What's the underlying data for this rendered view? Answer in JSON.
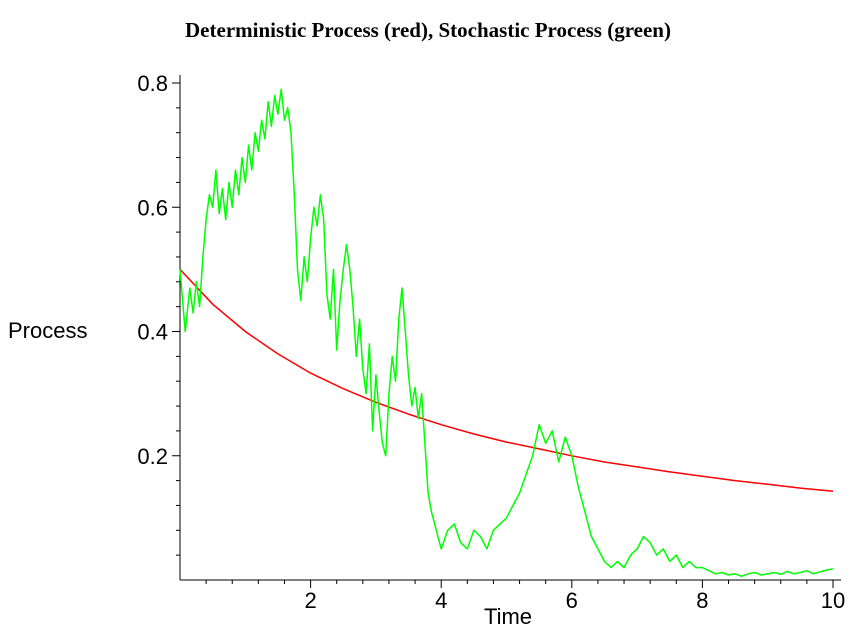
{
  "chart_data": {
    "type": "line",
    "title": "Deterministic Process (red), Stochastic Process (green)",
    "xlabel": "Time",
    "ylabel": "Process",
    "xlim": [
      0,
      10
    ],
    "ylim": [
      0,
      0.8
    ],
    "x_ticks": [
      2,
      4,
      6,
      8,
      10
    ],
    "x_tick_labels": [
      "2",
      "4",
      "6",
      "8",
      "10"
    ],
    "y_ticks": [
      0.2,
      0.4,
      0.6,
      0.8
    ],
    "y_tick_labels": [
      "0.2",
      "0.4",
      "0.6",
      "0.8"
    ],
    "grid": false,
    "series": [
      {
        "color": "#ff0000",
        "x": [
          0,
          0.5,
          1,
          1.5,
          2,
          2.5,
          3,
          3.5,
          4,
          4.5,
          5,
          5.5,
          6,
          6.5,
          7,
          7.5,
          8,
          8.5,
          9,
          9.5,
          10
        ],
        "y": [
          0.5,
          0.444,
          0.4,
          0.364,
          0.333,
          0.308,
          0.286,
          0.267,
          0.25,
          0.235,
          0.222,
          0.211,
          0.2,
          0.19,
          0.182,
          0.174,
          0.167,
          0.16,
          0.154,
          0.148,
          0.143
        ]
      },
      {
        "color": "#00ff00",
        "x": [
          0,
          0.08,
          0.15,
          0.2,
          0.25,
          0.3,
          0.35,
          0.4,
          0.45,
          0.5,
          0.55,
          0.6,
          0.65,
          0.7,
          0.75,
          0.8,
          0.85,
          0.9,
          0.95,
          1.0,
          1.05,
          1.1,
          1.15,
          1.2,
          1.25,
          1.3,
          1.35,
          1.4,
          1.45,
          1.5,
          1.55,
          1.6,
          1.65,
          1.7,
          1.75,
          1.8,
          1.85,
          1.9,
          1.95,
          2.0,
          2.05,
          2.1,
          2.15,
          2.2,
          2.25,
          2.3,
          2.35,
          2.4,
          2.45,
          2.5,
          2.55,
          2.6,
          2.65,
          2.7,
          2.75,
          2.8,
          2.85,
          2.9,
          2.95,
          3.0,
          3.05,
          3.1,
          3.15,
          3.2,
          3.25,
          3.3,
          3.35,
          3.4,
          3.45,
          3.5,
          3.55,
          3.6,
          3.65,
          3.7,
          3.75,
          3.8,
          3.85,
          3.9,
          3.95,
          4.0,
          4.1,
          4.2,
          4.3,
          4.4,
          4.5,
          4.6,
          4.7,
          4.8,
          4.9,
          5.0,
          5.1,
          5.2,
          5.3,
          5.4,
          5.5,
          5.6,
          5.7,
          5.8,
          5.9,
          6.0,
          6.1,
          6.2,
          6.3,
          6.4,
          6.5,
          6.6,
          6.7,
          6.8,
          6.9,
          7.0,
          7.1,
          7.2,
          7.3,
          7.4,
          7.5,
          7.6,
          7.7,
          7.8,
          7.9,
          8.0,
          8.1,
          8.2,
          8.3,
          8.4,
          8.5,
          8.6,
          8.7,
          8.8,
          8.9,
          9.0,
          9.1,
          9.2,
          9.3,
          9.4,
          9.5,
          9.6,
          9.7,
          9.8,
          9.9,
          10.0
        ],
        "y": [
          0.5,
          0.4,
          0.47,
          0.43,
          0.48,
          0.44,
          0.52,
          0.58,
          0.62,
          0.6,
          0.66,
          0.59,
          0.63,
          0.58,
          0.64,
          0.6,
          0.66,
          0.62,
          0.68,
          0.64,
          0.7,
          0.66,
          0.72,
          0.69,
          0.74,
          0.71,
          0.77,
          0.73,
          0.78,
          0.75,
          0.79,
          0.74,
          0.76,
          0.72,
          0.62,
          0.5,
          0.45,
          0.52,
          0.48,
          0.55,
          0.6,
          0.57,
          0.62,
          0.58,
          0.46,
          0.42,
          0.5,
          0.37,
          0.45,
          0.5,
          0.54,
          0.5,
          0.44,
          0.36,
          0.42,
          0.34,
          0.3,
          0.38,
          0.24,
          0.33,
          0.27,
          0.22,
          0.2,
          0.3,
          0.36,
          0.32,
          0.42,
          0.47,
          0.4,
          0.33,
          0.28,
          0.31,
          0.26,
          0.3,
          0.22,
          0.14,
          0.11,
          0.09,
          0.07,
          0.05,
          0.08,
          0.09,
          0.06,
          0.05,
          0.08,
          0.07,
          0.05,
          0.08,
          0.09,
          0.1,
          0.12,
          0.14,
          0.17,
          0.2,
          0.25,
          0.22,
          0.24,
          0.19,
          0.23,
          0.2,
          0.15,
          0.11,
          0.07,
          0.05,
          0.03,
          0.02,
          0.03,
          0.02,
          0.04,
          0.05,
          0.07,
          0.06,
          0.04,
          0.05,
          0.03,
          0.04,
          0.02,
          0.03,
          0.02,
          0.02,
          0.015,
          0.01,
          0.012,
          0.008,
          0.01,
          0.006,
          0.01,
          0.012,
          0.008,
          0.01,
          0.012,
          0.009,
          0.014,
          0.01,
          0.012,
          0.015,
          0.01,
          0.013,
          0.016,
          0.018
        ]
      }
    ]
  }
}
